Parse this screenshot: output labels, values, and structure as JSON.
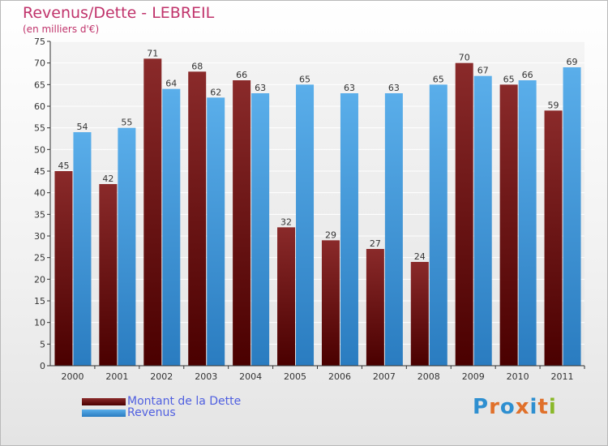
{
  "chart_data": {
    "type": "bar",
    "title": "Revenus/Dette - LEBREIL",
    "subtitle": "(en milliers d'€)",
    "xlabel": "",
    "ylabel": "",
    "categories": [
      "2000",
      "2001",
      "2002",
      "2003",
      "2004",
      "2005",
      "2006",
      "2007",
      "2008",
      "2009",
      "2010",
      "2011"
    ],
    "ylim": [
      0,
      75
    ],
    "yticks": [
      0,
      5,
      10,
      15,
      20,
      25,
      30,
      35,
      40,
      45,
      50,
      55,
      60,
      65,
      70,
      75
    ],
    "grid": true,
    "legend_position": "bottom-left",
    "series": [
      {
        "name": "Montant de la Dette",
        "color": "#7a1a1a",
        "values": [
          45,
          42,
          71,
          68,
          66,
          32,
          29,
          27,
          24,
          70,
          65,
          59
        ]
      },
      {
        "name": "Revenus",
        "color": "#3a95da",
        "values": [
          54,
          55,
          64,
          62,
          63,
          65,
          63,
          63,
          65,
          67,
          66,
          69
        ]
      }
    ]
  },
  "logo": {
    "text": "Proxiti",
    "letter_colors": [
      "#2e8fd0",
      "#e0702a",
      "#2e8fd0",
      "#e0702a",
      "#2e8fd0",
      "#e0702a",
      "#8ab829"
    ]
  },
  "colors": {
    "title": "#c0336b",
    "legend_text": "#4f5fe0",
    "axis": "#333333"
  }
}
